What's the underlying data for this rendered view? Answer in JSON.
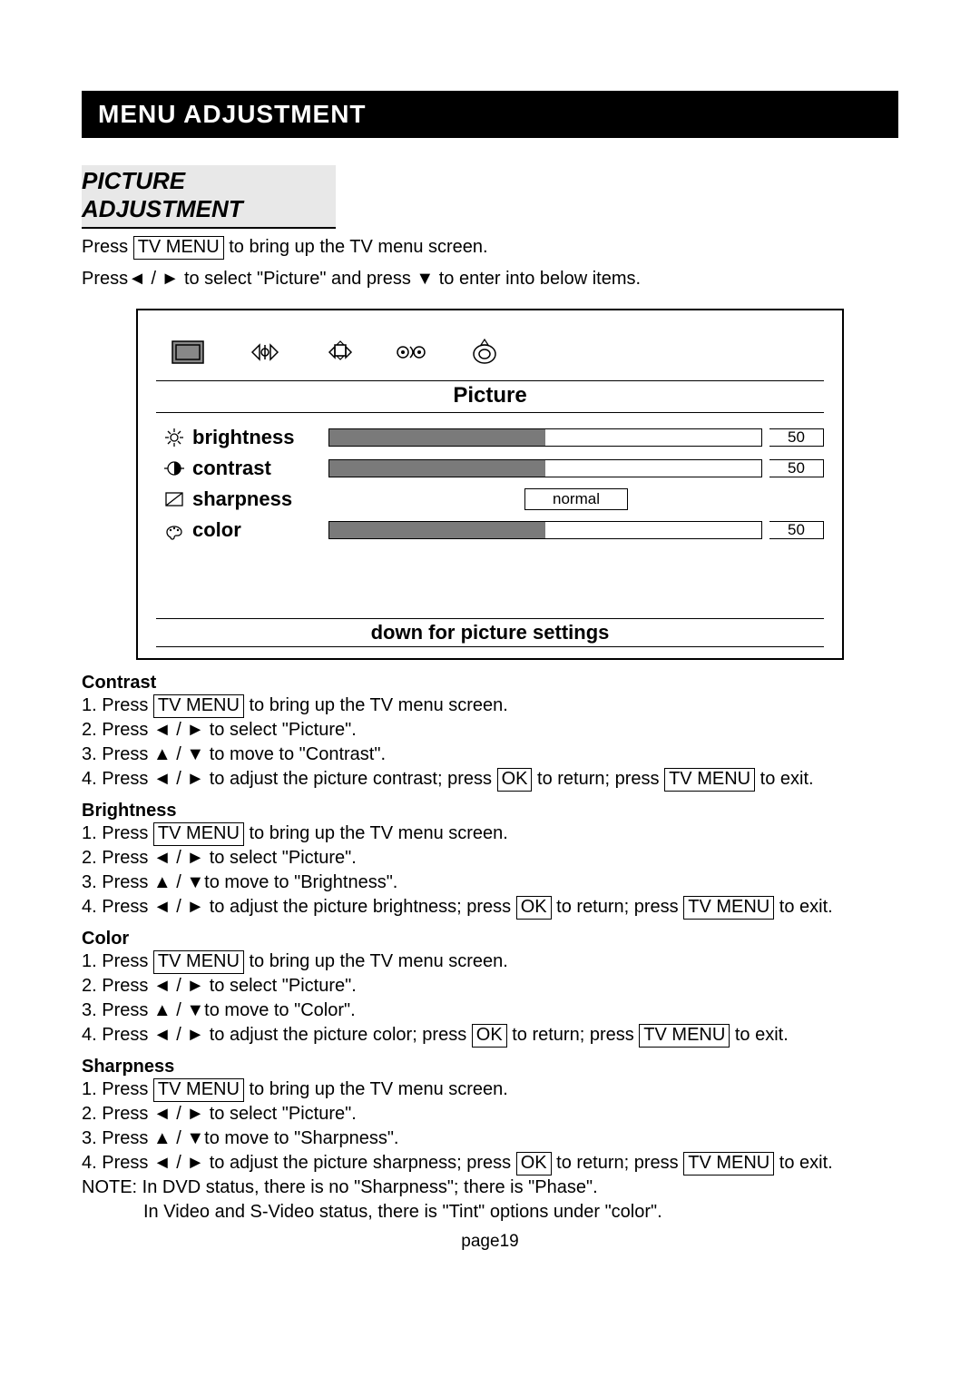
{
  "title_bar": "MENU ADJUSTMENT",
  "section_heading": "PICTURE ADJUSTMENT",
  "intro1_a": "Press ",
  "intro1_key": "TV MENU",
  "intro1_b": " to bring up the TV menu screen.",
  "intro2": "Press◄ / ► to select \"Picture\" and press ▼ to enter into below items.",
  "osd": {
    "title": "Picture",
    "settings": [
      {
        "label": "brightness",
        "value": 50,
        "type": "slider",
        "fill_pct": 50
      },
      {
        "label": "contrast",
        "value": 50,
        "type": "slider",
        "fill_pct": 50
      },
      {
        "label": "sharpness",
        "option": "normal",
        "type": "option"
      },
      {
        "label": "color",
        "value": 50,
        "type": "slider",
        "fill_pct": 50
      }
    ],
    "hint": "down for picture settings"
  },
  "procs": [
    {
      "title": "Contrast",
      "steps": [
        {
          "a": "1. Press ",
          "k1": "TV MENU",
          "b": " to bring up the TV menu screen."
        },
        {
          "a": "2. Press ◄ / ► to select \"Picture\"."
        },
        {
          "a": "3. Press  ▲ / ▼ to move to \"Contrast\"."
        },
        {
          "a": "4. Press ◄ / ► to adjust the picture contrast; press ",
          "k1": "OK",
          "b": " to return; press ",
          "k2": "TV MENU",
          "c": " to exit."
        }
      ]
    },
    {
      "title": "Brightness",
      "steps": [
        {
          "a": "1. Press ",
          "k1": "TV MENU",
          "b": " to bring up the TV menu screen."
        },
        {
          "a": "2. Press ◄ / ► to select \"Picture\"."
        },
        {
          "a": "3. Press  ▲ /  ▼to move to \"Brightness\"."
        },
        {
          "a": "4. Press ◄ / ► to adjust the picture brightness; press ",
          "k1": "OK",
          "b": " to return; press ",
          "k2": "TV MENU",
          "c": " to exit."
        }
      ]
    },
    {
      "title": "Color",
      "steps": [
        {
          "a": "1. Press ",
          "k1": "TV MENU",
          "b": " to bring up the TV menu screen."
        },
        {
          "a": "2. Press ◄ / ► to select \"Picture\"."
        },
        {
          "a": "3. Press  ▲ /  ▼to move to \"Color\"."
        },
        {
          "a": "4. Press ◄ / ► to adjust the picture color; press ",
          "k1": "OK",
          "b": " to return; press ",
          "k2": "TV MENU",
          "c": " to exit."
        }
      ]
    },
    {
      "title": "Sharpness",
      "steps": [
        {
          "a": "1. Press ",
          "k1": "TV MENU",
          "b": " to bring up the TV menu screen."
        },
        {
          "a": "2. Press ◄ / ► to select \"Picture\"."
        },
        {
          "a": "3. Press  ▲ /  ▼to move to \"Sharpness\"."
        },
        {
          "a": "4. Press ◄ / ► to adjust the picture sharpness; press ",
          "k1": "OK",
          "b": " to return; press ",
          "k2": "TV MENU",
          "c": " to exit."
        }
      ]
    }
  ],
  "note1": "NOTE: In DVD status, there is no \"Sharpness\"; there is \"Phase\".",
  "note2": "In Video and S-Video status, there is \"Tint\" options under \"color\".",
  "page_num": "page19",
  "colors": {
    "slider_fill": "#7a7a7a",
    "section_bg": "#e8e8e8"
  }
}
